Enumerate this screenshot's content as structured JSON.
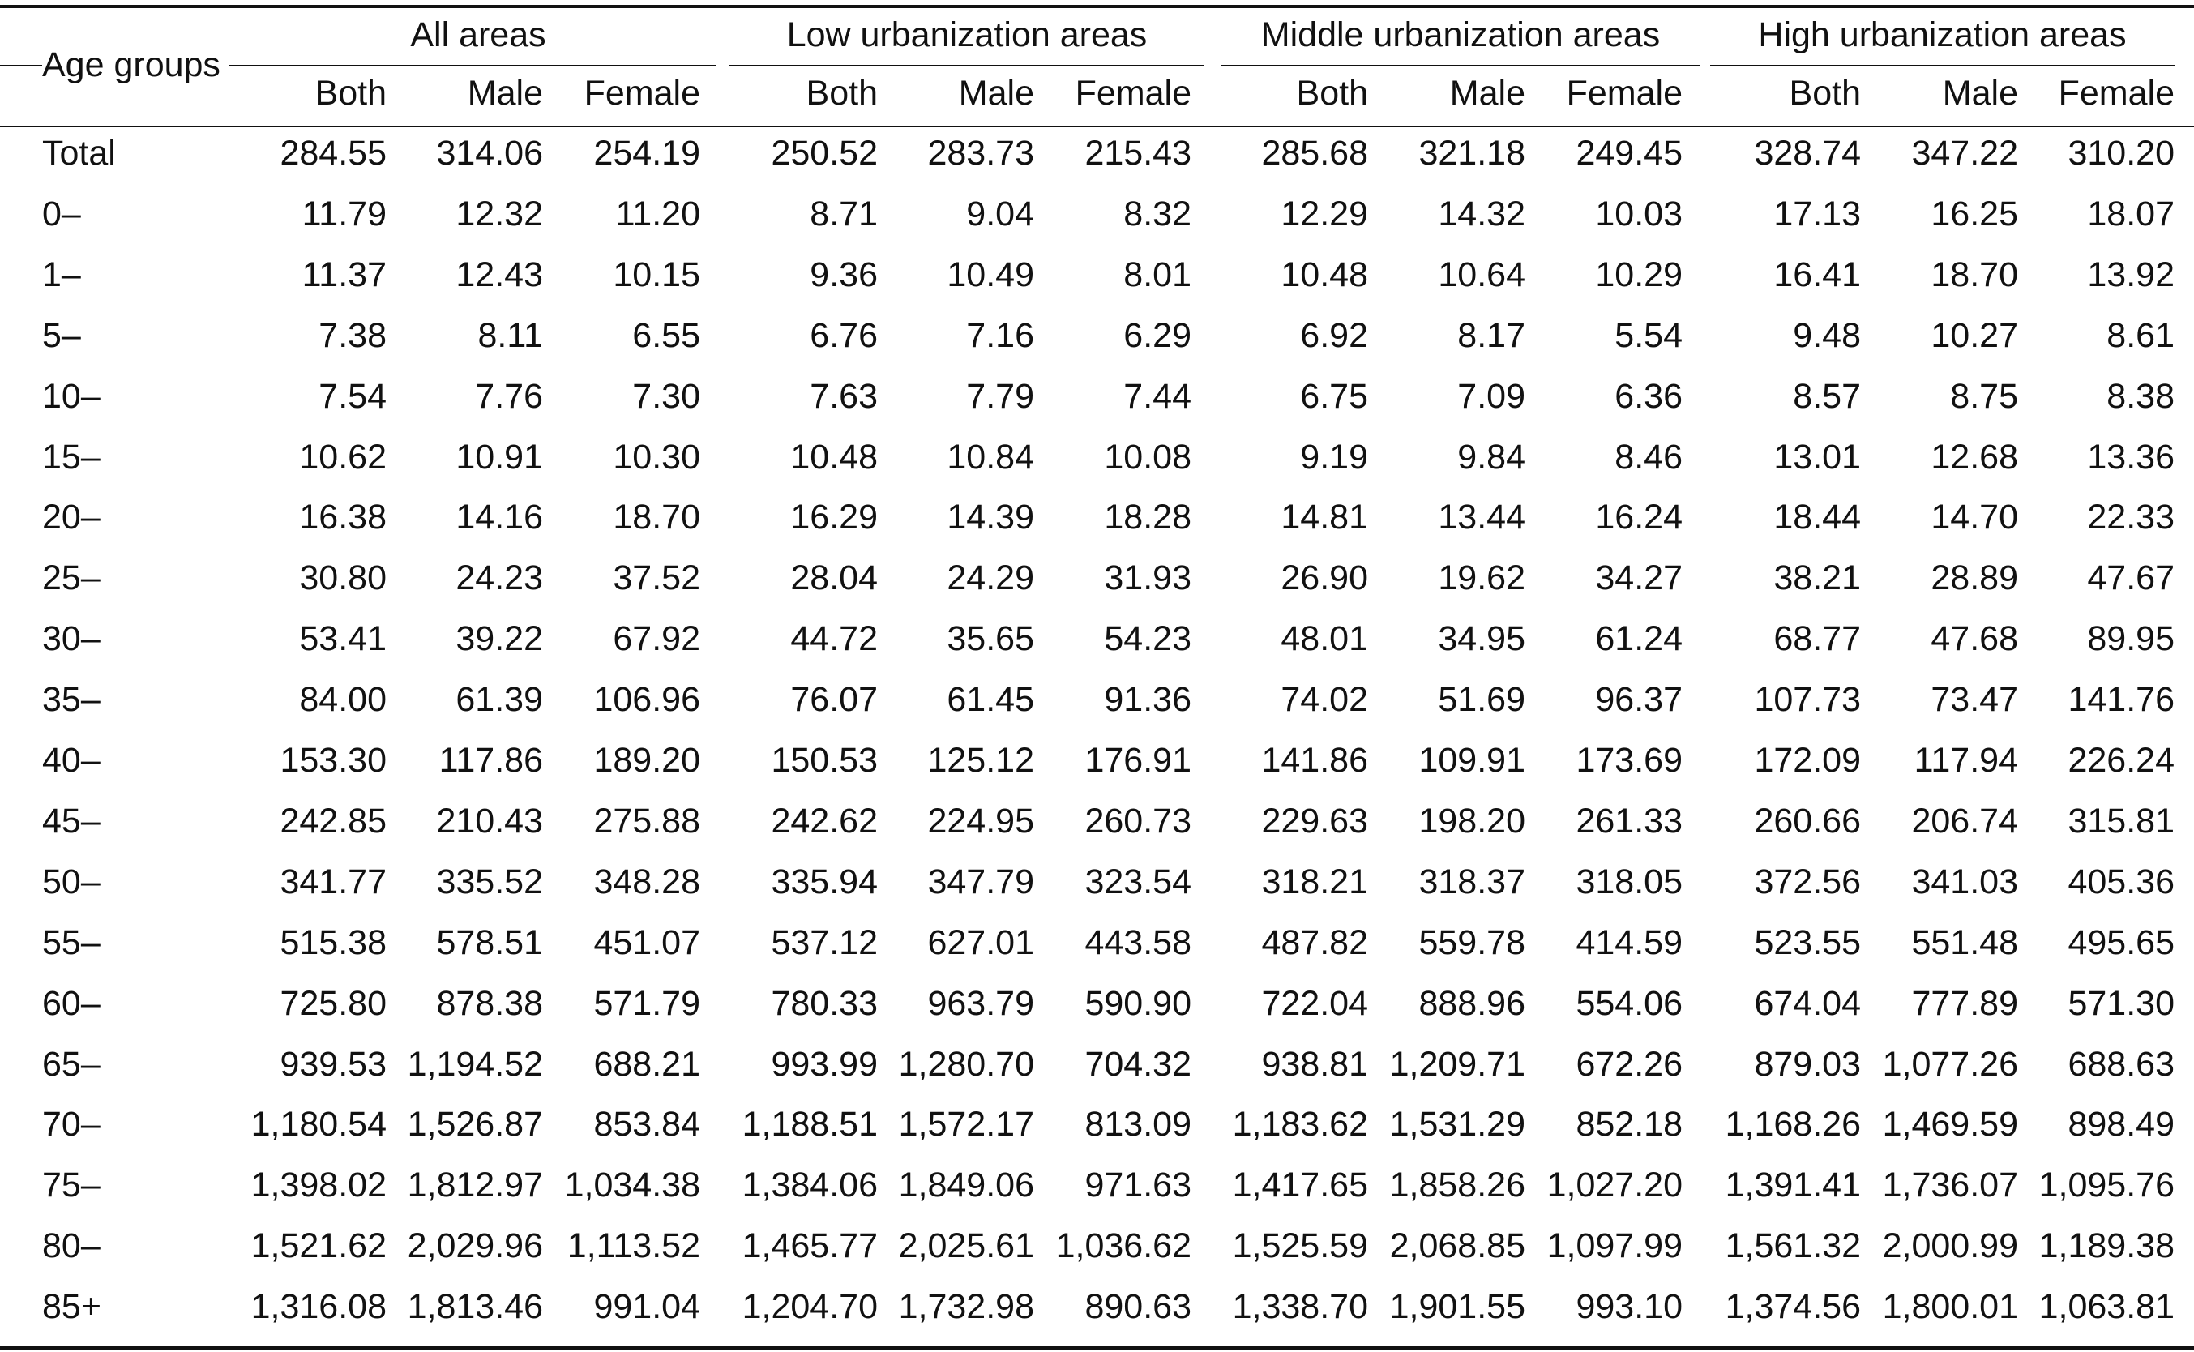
{
  "table": {
    "row_header": "Age groups",
    "groups": [
      "All areas",
      "Low urbanization areas",
      "Middle urbanization areas",
      "High urbanization areas"
    ],
    "subheaders": [
      "Both",
      "Male",
      "Female"
    ],
    "rows": [
      {
        "label": "Total",
        "values": [
          "284.55",
          "314.06",
          "254.19",
          "250.52",
          "283.73",
          "215.43",
          "285.68",
          "321.18",
          "249.45",
          "328.74",
          "347.22",
          "310.20"
        ]
      },
      {
        "label": "0–",
        "values": [
          "11.79",
          "12.32",
          "11.20",
          "8.71",
          "9.04",
          "8.32",
          "12.29",
          "14.32",
          "10.03",
          "17.13",
          "16.25",
          "18.07"
        ]
      },
      {
        "label": "1–",
        "values": [
          "11.37",
          "12.43",
          "10.15",
          "9.36",
          "10.49",
          "8.01",
          "10.48",
          "10.64",
          "10.29",
          "16.41",
          "18.70",
          "13.92"
        ]
      },
      {
        "label": "5–",
        "values": [
          "7.38",
          "8.11",
          "6.55",
          "6.76",
          "7.16",
          "6.29",
          "6.92",
          "8.17",
          "5.54",
          "9.48",
          "10.27",
          "8.61"
        ]
      },
      {
        "label": "10–",
        "values": [
          "7.54",
          "7.76",
          "7.30",
          "7.63",
          "7.79",
          "7.44",
          "6.75",
          "7.09",
          "6.36",
          "8.57",
          "8.75",
          "8.38"
        ]
      },
      {
        "label": "15–",
        "values": [
          "10.62",
          "10.91",
          "10.30",
          "10.48",
          "10.84",
          "10.08",
          "9.19",
          "9.84",
          "8.46",
          "13.01",
          "12.68",
          "13.36"
        ]
      },
      {
        "label": "20–",
        "values": [
          "16.38",
          "14.16",
          "18.70",
          "16.29",
          "14.39",
          "18.28",
          "14.81",
          "13.44",
          "16.24",
          "18.44",
          "14.70",
          "22.33"
        ]
      },
      {
        "label": "25–",
        "values": [
          "30.80",
          "24.23",
          "37.52",
          "28.04",
          "24.29",
          "31.93",
          "26.90",
          "19.62",
          "34.27",
          "38.21",
          "28.89",
          "47.67"
        ]
      },
      {
        "label": "30–",
        "values": [
          "53.41",
          "39.22",
          "67.92",
          "44.72",
          "35.65",
          "54.23",
          "48.01",
          "34.95",
          "61.24",
          "68.77",
          "47.68",
          "89.95"
        ]
      },
      {
        "label": "35–",
        "values": [
          "84.00",
          "61.39",
          "106.96",
          "76.07",
          "61.45",
          "91.36",
          "74.02",
          "51.69",
          "96.37",
          "107.73",
          "73.47",
          "141.76"
        ]
      },
      {
        "label": "40–",
        "values": [
          "153.30",
          "117.86",
          "189.20",
          "150.53",
          "125.12",
          "176.91",
          "141.86",
          "109.91",
          "173.69",
          "172.09",
          "117.94",
          "226.24"
        ]
      },
      {
        "label": "45–",
        "values": [
          "242.85",
          "210.43",
          "275.88",
          "242.62",
          "224.95",
          "260.73",
          "229.63",
          "198.20",
          "261.33",
          "260.66",
          "206.74",
          "315.81"
        ]
      },
      {
        "label": "50–",
        "values": [
          "341.77",
          "335.52",
          "348.28",
          "335.94",
          "347.79",
          "323.54",
          "318.21",
          "318.37",
          "318.05",
          "372.56",
          "341.03",
          "405.36"
        ]
      },
      {
        "label": "55–",
        "values": [
          "515.38",
          "578.51",
          "451.07",
          "537.12",
          "627.01",
          "443.58",
          "487.82",
          "559.78",
          "414.59",
          "523.55",
          "551.48",
          "495.65"
        ]
      },
      {
        "label": "60–",
        "values": [
          "725.80",
          "878.38",
          "571.79",
          "780.33",
          "963.79",
          "590.90",
          "722.04",
          "888.96",
          "554.06",
          "674.04",
          "777.89",
          "571.30"
        ]
      },
      {
        "label": "65–",
        "values": [
          "939.53",
          "1,194.52",
          "688.21",
          "993.99",
          "1,280.70",
          "704.32",
          "938.81",
          "1,209.71",
          "672.26",
          "879.03",
          "1,077.26",
          "688.63"
        ]
      },
      {
        "label": "70–",
        "values": [
          "1,180.54",
          "1,526.87",
          "853.84",
          "1,188.51",
          "1,572.17",
          "813.09",
          "1,183.62",
          "1,531.29",
          "852.18",
          "1,168.26",
          "1,469.59",
          "898.49"
        ]
      },
      {
        "label": "75–",
        "values": [
          "1,398.02",
          "1,812.97",
          "1,034.38",
          "1,384.06",
          "1,849.06",
          "971.63",
          "1,417.65",
          "1,858.26",
          "1,027.20",
          "1,391.41",
          "1,736.07",
          "1,095.76"
        ]
      },
      {
        "label": "80–",
        "values": [
          "1,521.62",
          "2,029.96",
          "1,113.52",
          "1,465.77",
          "2,025.61",
          "1,036.62",
          "1,525.59",
          "2,068.85",
          "1,097.99",
          "1,561.32",
          "2,000.99",
          "1,189.38"
        ]
      },
      {
        "label": "85+",
        "values": [
          "1,316.08",
          "1,813.46",
          "991.04",
          "1,204.70",
          "1,732.98",
          "890.63",
          "1,338.70",
          "1,901.55",
          "993.10",
          "1,374.56",
          "1,800.01",
          "1,063.81"
        ]
      }
    ]
  }
}
